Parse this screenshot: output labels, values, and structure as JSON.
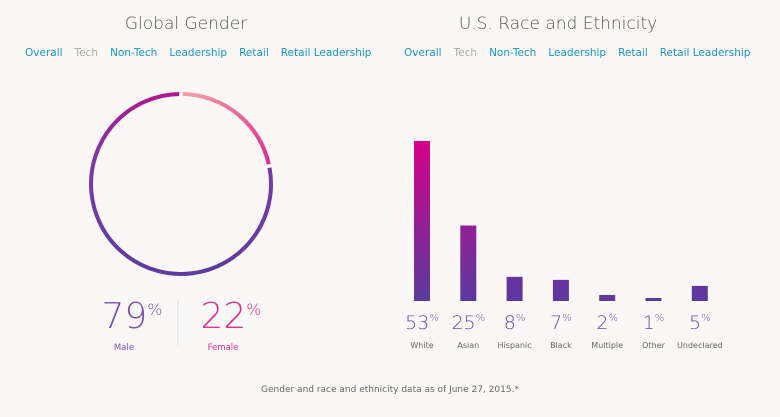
{
  "gender": {
    "title": "Global Gender",
    "tabs": [
      "Overall",
      "Tech",
      "Non-Tech",
      "Leadership",
      "Retail",
      "Retail Leadership"
    ],
    "selected_tab": "Tech",
    "male": {
      "value": "79",
      "unit": "%",
      "label": "Male"
    },
    "female": {
      "value": "22",
      "unit": "%",
      "label": "Female"
    }
  },
  "race": {
    "title": "U.S. Race and Ethnicity",
    "tabs": [
      "Overall",
      "Tech",
      "Non-Tech",
      "Leadership",
      "Retail",
      "Retail Leadership"
    ],
    "selected_tab": "Tech"
  },
  "chart_data": [
    {
      "type": "pie",
      "variant": "donut",
      "categories": [
        "Male",
        "Female"
      ],
      "values": [
        79,
        22
      ],
      "colors": [
        "#6b3fa8",
        "#f08aa0"
      ]
    },
    {
      "type": "bar",
      "categories": [
        "White",
        "Asian",
        "Hispanic",
        "Black",
        "Multiple",
        "Other",
        "Undeclared"
      ],
      "values": [
        53,
        25,
        8,
        7,
        2,
        1,
        5
      ],
      "unit": "%",
      "colors": {
        "top": "#d6008a",
        "bottom": "#5a3a9f"
      }
    }
  ],
  "footer": "Gender and race and ethnicity data as of June 27, 2015.*"
}
